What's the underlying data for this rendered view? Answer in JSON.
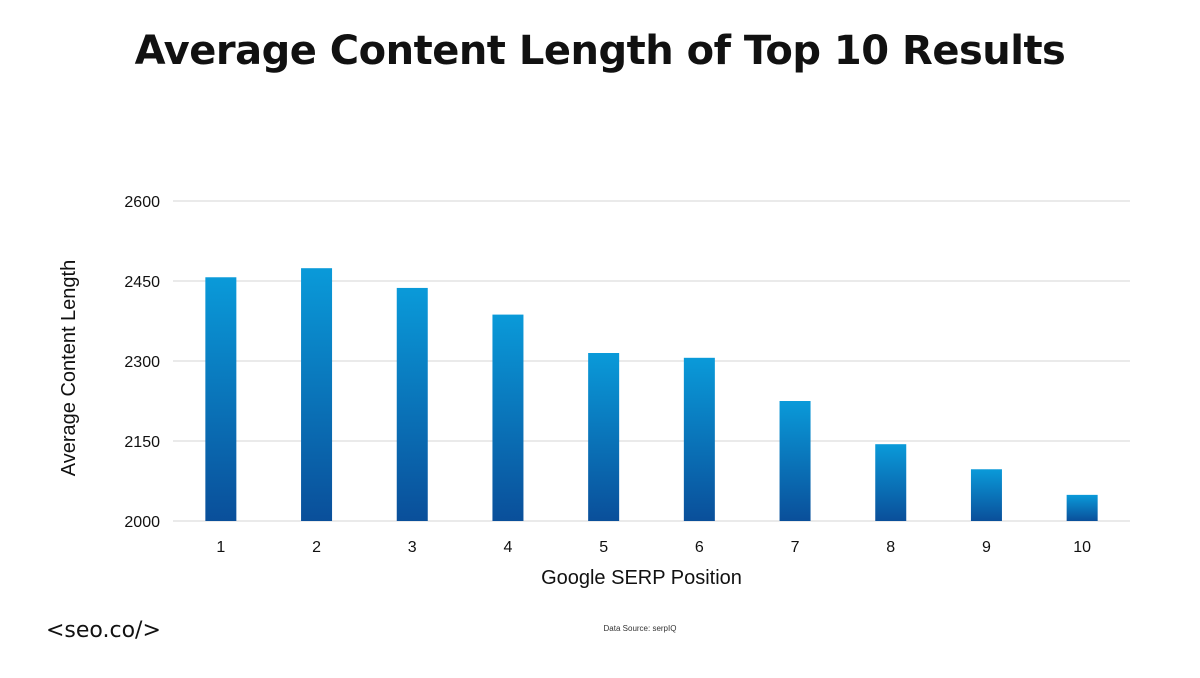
{
  "chart_data": {
    "type": "bar",
    "title": "Average Content Length of Top 10 Results",
    "xlabel": "Google SERP Position",
    "ylabel": "Average Content Length",
    "categories": [
      "1",
      "2",
      "3",
      "4",
      "5",
      "6",
      "7",
      "8",
      "9",
      "10"
    ],
    "values": [
      2457,
      2474,
      2437,
      2387,
      2315,
      2306,
      2225,
      2144,
      2097,
      2049
    ],
    "ylim": [
      2000,
      2600
    ],
    "yticks": [
      "2000",
      "2150",
      "2300",
      "2450",
      "2600"
    ],
    "grid": true,
    "bar_color_top": "#0a9ad9",
    "bar_color_bottom": "#0a4f9a"
  },
  "footer": {
    "logo": "<seo.co/>",
    "source": "Data Source: serpIQ"
  }
}
